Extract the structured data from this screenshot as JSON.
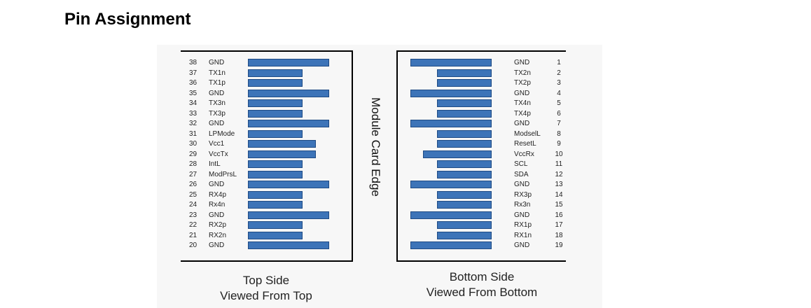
{
  "title": "Pin Assignment",
  "edge_label": "Module Card Edge",
  "bar_color": "#3d74b8",
  "top_side": {
    "caption_line1": "Top Side",
    "caption_line2": "Viewed From Top",
    "pins": [
      {
        "num": "38",
        "label": "GND",
        "type": "long"
      },
      {
        "num": "37",
        "label": "TX1n",
        "type": "short"
      },
      {
        "num": "36",
        "label": "TX1p",
        "type": "short"
      },
      {
        "num": "35",
        "label": "GND",
        "type": "long"
      },
      {
        "num": "34",
        "label": "TX3n",
        "type": "short"
      },
      {
        "num": "33",
        "label": "TX3p",
        "type": "short"
      },
      {
        "num": "32",
        "label": "GND",
        "type": "long"
      },
      {
        "num": "31",
        "label": "LPMode",
        "type": "short"
      },
      {
        "num": "30",
        "label": "Vcc1",
        "type": "medium"
      },
      {
        "num": "29",
        "label": "VccTx",
        "type": "medium"
      },
      {
        "num": "28",
        "label": "IntL",
        "type": "short"
      },
      {
        "num": "27",
        "label": "ModPrsL",
        "type": "short"
      },
      {
        "num": "26",
        "label": "GND",
        "type": "long"
      },
      {
        "num": "25",
        "label": "RX4p",
        "type": "short"
      },
      {
        "num": "24",
        "label": "Rx4n",
        "type": "short"
      },
      {
        "num": "23",
        "label": "GND",
        "type": "long"
      },
      {
        "num": "22",
        "label": "RX2p",
        "type": "short"
      },
      {
        "num": "21",
        "label": "RX2n",
        "type": "short"
      },
      {
        "num": "20",
        "label": "GND",
        "type": "long"
      }
    ]
  },
  "bottom_side": {
    "caption_line1": "Bottom Side",
    "caption_line2": "Viewed From Bottom",
    "pins": [
      {
        "num": "1",
        "label": "GND",
        "type": "long"
      },
      {
        "num": "2",
        "label": "TX2n",
        "type": "short"
      },
      {
        "num": "3",
        "label": "TX2p",
        "type": "short"
      },
      {
        "num": "4",
        "label": "GND",
        "type": "long"
      },
      {
        "num": "5",
        "label": "TX4n",
        "type": "short"
      },
      {
        "num": "6",
        "label": "TX4p",
        "type": "short"
      },
      {
        "num": "7",
        "label": "GND",
        "type": "long"
      },
      {
        "num": "8",
        "label": "ModselL",
        "type": "short"
      },
      {
        "num": "9",
        "label": "ResetL",
        "type": "short"
      },
      {
        "num": "10",
        "label": "VccRx",
        "type": "medium"
      },
      {
        "num": "11",
        "label": "SCL",
        "type": "short"
      },
      {
        "num": "12",
        "label": "SDA",
        "type": "short"
      },
      {
        "num": "13",
        "label": "GND",
        "type": "long"
      },
      {
        "num": "14",
        "label": "RX3p",
        "type": "short"
      },
      {
        "num": "15",
        "label": "Rx3n",
        "type": "short"
      },
      {
        "num": "16",
        "label": "GND",
        "type": "long"
      },
      {
        "num": "17",
        "label": "RX1p",
        "type": "short"
      },
      {
        "num": "18",
        "label": "RX1n",
        "type": "short"
      },
      {
        "num": "19",
        "label": "GND",
        "type": "long"
      }
    ]
  }
}
